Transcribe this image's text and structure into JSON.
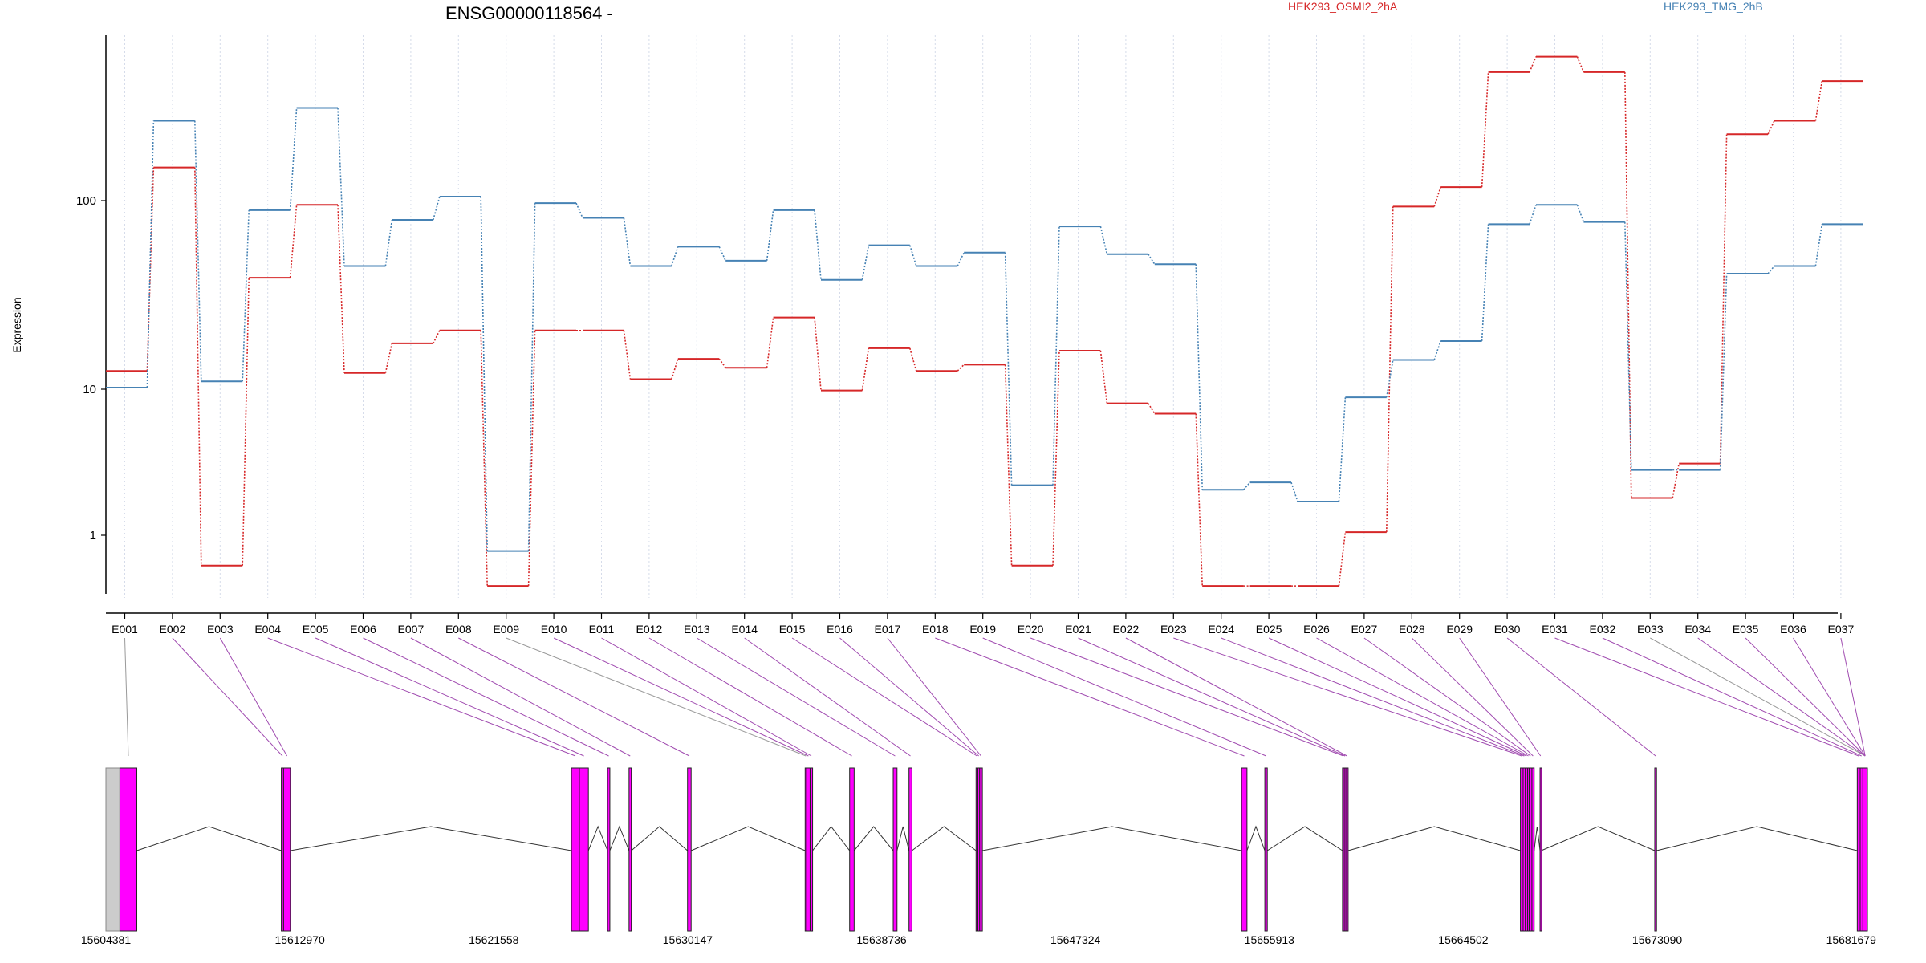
{
  "chart_data": {
    "type": "line",
    "title": "ENSG00000118564 -",
    "ylabel": "Expression",
    "y_scale": "log",
    "y_ticks": [
      1,
      10,
      100
    ],
    "y_tick_labels": [
      "1",
      "10",
      "100"
    ],
    "categories": [
      "E001",
      "E002",
      "E003",
      "E004",
      "E005",
      "E006",
      "E007",
      "E008",
      "E009",
      "E010",
      "E011",
      "E012",
      "E013",
      "E014",
      "E015",
      "E016",
      "E017",
      "E018",
      "E019",
      "E020",
      "E021",
      "E022",
      "E023",
      "E024",
      "E025",
      "E026",
      "E027",
      "E028",
      "E029",
      "E030",
      "E031",
      "E032",
      "E033",
      "E034",
      "E035",
      "E036",
      "E037"
    ],
    "series": [
      {
        "name": "HEK293_OSMI2_2hA",
        "color": "#d62728",
        "values": [
          12.5,
          150,
          0.62,
          39,
          95,
          12.2,
          17.5,
          20.5,
          0.45,
          20.5,
          20.5,
          11.3,
          14.5,
          13,
          24,
          9.8,
          16.5,
          12.5,
          13.5,
          0.62,
          16,
          8,
          6.8,
          0.45,
          0.45,
          0.45,
          1.05,
          93,
          118,
          480,
          580,
          480,
          1.8,
          3.1,
          225,
          265,
          430
        ]
      },
      {
        "name": "HEK293_TMG_2hB",
        "color": "#4682b4",
        "values": [
          10.2,
          265,
          11,
          89,
          310,
          45,
          79,
          105,
          0.78,
          97,
          81,
          45,
          57,
          48,
          89,
          38,
          58,
          45,
          53,
          2.2,
          73,
          52,
          46,
          2.05,
          2.3,
          1.7,
          8.8,
          14.3,
          18,
          75,
          95,
          77,
          2.8,
          2.8,
          41,
          45,
          75
        ]
      }
    ],
    "genomic_ticks": [
      "15604381",
      "15612970",
      "15621558",
      "15630147",
      "15638736",
      "15647324",
      "15655913",
      "15664502",
      "15673090",
      "15681679"
    ],
    "genomic_range": [
      15604381,
      15682400
    ],
    "grid": "vertical dotted",
    "legend_placement": "top",
    "exon_positions": [
      {
        "s": 15605000,
        "e": 15605750
      },
      {
        "s": 15612150,
        "e": 15612250
      },
      {
        "s": 15612250,
        "e": 15612550
      },
      {
        "s": 15625000,
        "e": 15625350
      },
      {
        "s": 15625350,
        "e": 15625750
      },
      {
        "s": 15626600,
        "e": 15626700
      },
      {
        "s": 15627550,
        "e": 15627650
      },
      {
        "s": 15630140,
        "e": 15630300
      },
      {
        "s": 15635350,
        "e": 15635420
      },
      {
        "s": 15635420,
        "e": 15635570
      },
      {
        "s": 15635570,
        "e": 15635680
      },
      {
        "s": 15637320,
        "e": 15637520
      },
      {
        "s": 15639250,
        "e": 15639420
      },
      {
        "s": 15639950,
        "e": 15640080
      },
      {
        "s": 15642920,
        "e": 15643000
      },
      {
        "s": 15643000,
        "e": 15643080
      },
      {
        "s": 15643080,
        "e": 15643200
      },
      {
        "s": 15654680,
        "e": 15654920
      },
      {
        "s": 15655710,
        "e": 15655820
      },
      {
        "s": 15659150,
        "e": 15659230
      },
      {
        "s": 15659230,
        "e": 15659300
      },
      {
        "s": 15659300,
        "e": 15659400
      },
      {
        "s": 15667030,
        "e": 15667150
      },
      {
        "s": 15667150,
        "e": 15667250
      },
      {
        "s": 15667250,
        "e": 15667350
      },
      {
        "s": 15667350,
        "e": 15667420
      },
      {
        "s": 15667420,
        "e": 15667540
      },
      {
        "s": 15667540,
        "e": 15667640
      },
      {
        "s": 15667900,
        "e": 15667950
      },
      {
        "s": 15672980,
        "e": 15673060
      },
      {
        "s": 15681950,
        "e": 15682080
      },
      {
        "s": 15682080,
        "e": 15682200
      },
      {
        "s": 15682200,
        "e": 15682400
      }
    ],
    "noncoding_block": {
      "s": 15604381,
      "e": 15605000
    },
    "exon_connector_map": [
      [
        0,
        1
      ],
      [
        1,
        2
      ],
      [
        2,
        3
      ],
      [
        3,
        4
      ],
      [
        4,
        5
      ],
      [
        5,
        6
      ],
      [
        6,
        7
      ],
      [
        7,
        8
      ],
      [
        8,
        9
      ],
      [
        9,
        10
      ],
      [
        10,
        11
      ],
      [
        11,
        12
      ],
      [
        12,
        13
      ],
      [
        13,
        14
      ],
      [
        14,
        15
      ],
      [
        15,
        16
      ],
      [
        16,
        17
      ],
      [
        17,
        18
      ],
      [
        18,
        19
      ],
      [
        19,
        20
      ],
      [
        20,
        21
      ],
      [
        21,
        22
      ],
      [
        22,
        23
      ],
      [
        23,
        24
      ],
      [
        24,
        25
      ],
      [
        25,
        26
      ],
      [
        26,
        27
      ],
      [
        27,
        28
      ],
      [
        28,
        29
      ],
      [
        29,
        30
      ],
      [
        30,
        31
      ],
      [
        31,
        32
      ],
      [
        32,
        33
      ]
    ]
  }
}
